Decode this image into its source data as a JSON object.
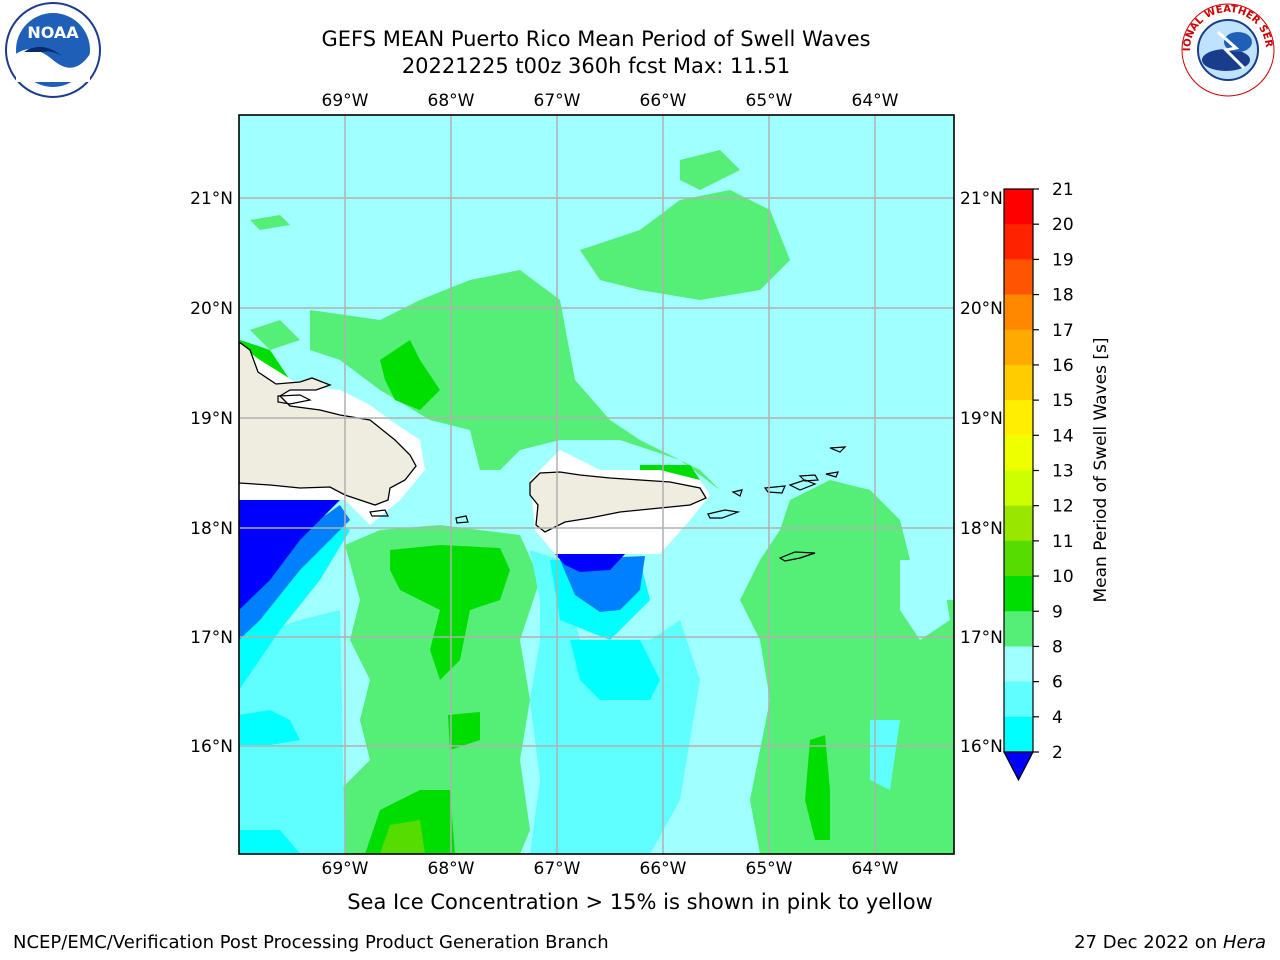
{
  "title": {
    "line1": "GEFS MEAN Puerto Rico Mean Period of Swell Waves",
    "line2": "20221225 t00z 360h fcst   Max: 11.51"
  },
  "axes": {
    "lon_labels": [
      "69°W",
      "68°W",
      "67°W",
      "66°W",
      "65°W",
      "64°W"
    ],
    "lat_labels": [
      "21°N",
      "20°N",
      "19°N",
      "18°N",
      "17°N",
      "16°N"
    ]
  },
  "colorbar": {
    "label": "Mean Period of Swell Waves [s]",
    "ticks": [
      "2",
      "4",
      "6",
      "8",
      "9",
      "10",
      "11",
      "12",
      "13",
      "14",
      "15",
      "16",
      "17",
      "18",
      "19",
      "20",
      "21"
    ],
    "colors": [
      "#0000ff",
      "#0080ff",
      "#00ffff",
      "#60ffff",
      "#a0ffff",
      "#55ee77",
      "#00dd00",
      "#55dd00",
      "#99e600",
      "#ccff00",
      "#eeff00",
      "#ffee00",
      "#ffcc00",
      "#ffaa00",
      "#ff8800",
      "#ff5500",
      "#ff2200",
      "#ff0000"
    ]
  },
  "legend_note": "Sea Ice Concentration > 15% is shown in pink to yellow",
  "footer": {
    "left": "NCEP/EMC/Verification Post Processing Product Generation Branch",
    "right_prefix": "27 Dec 2022 on ",
    "right_host": "Hera"
  },
  "logos": {
    "left": "NOAA",
    "right": "NATIONAL WEATHER SERVICE"
  },
  "map_colors": {
    "land": "#efede0",
    "mask": "#ffffff",
    "grid": "#b0b0b0"
  }
}
